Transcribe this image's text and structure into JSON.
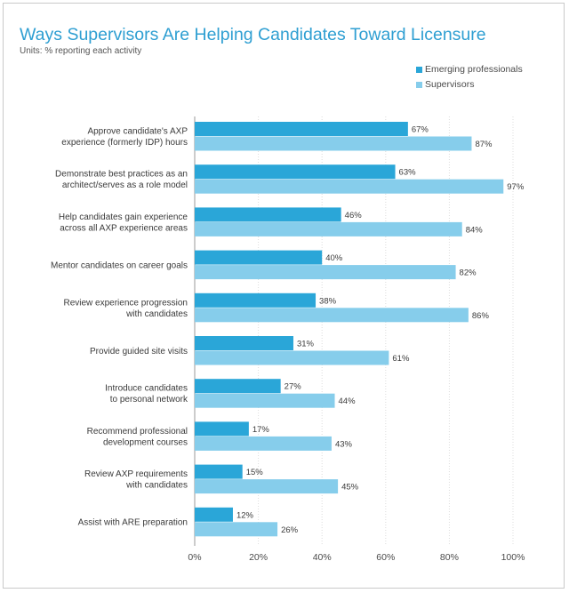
{
  "chart_data": {
    "type": "bar",
    "orientation": "horizontal",
    "title": "Ways Supervisors Are Helping Candidates Toward Licensure",
    "subtitle": "Units: % reporting each activity",
    "categories": [
      [
        "Approve candidate's AXP",
        "experience (formerly IDP) hours"
      ],
      [
        "Demonstrate best practices as an",
        "architect/serves as a role model"
      ],
      [
        "Help candidates gain experience",
        "across all AXP experience areas"
      ],
      [
        "Mentor candidates on career goals"
      ],
      [
        "Review experience progression",
        "with candidates"
      ],
      [
        "Provide guided site visits"
      ],
      [
        "Introduce candidates",
        "to personal network"
      ],
      [
        "Recommend professional",
        "development courses"
      ],
      [
        "Review AXP requirements",
        "with candidates"
      ],
      [
        "Assist with ARE preparation"
      ]
    ],
    "series": [
      {
        "name": "Emerging professionals",
        "color": "#2aa6d8",
        "values": [
          67,
          63,
          46,
          40,
          38,
          31,
          27,
          17,
          15,
          12
        ]
      },
      {
        "name": "Supervisors",
        "color": "#86cdeb",
        "values": [
          87,
          97,
          84,
          82,
          86,
          61,
          44,
          43,
          45,
          26
        ]
      }
    ],
    "xlim": [
      0,
      100
    ],
    "xticks": [
      0,
      20,
      40,
      60,
      80,
      100
    ],
    "tick_suffix": "%",
    "label_suffix": "%",
    "legend": "top-right"
  }
}
